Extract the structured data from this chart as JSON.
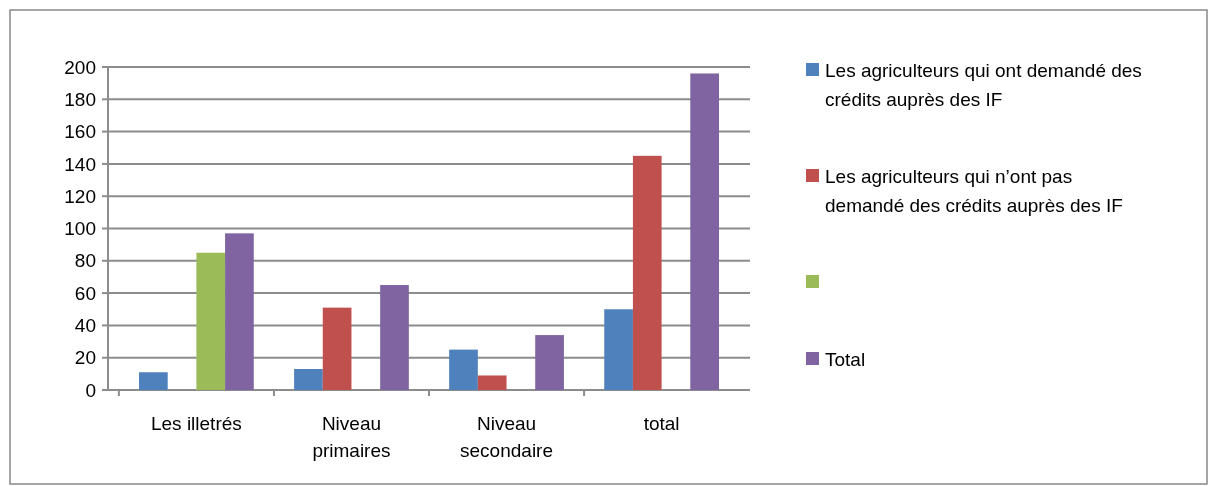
{
  "chart_data": {
    "type": "bar",
    "categories": [
      "Les illetrés",
      "Niveau primaires",
      "Niveau secondaire",
      "total"
    ],
    "series": [
      {
        "name": "Les agriculteurs qui ont demandé des crédits auprès des IF",
        "color": "#4f81bd",
        "values": [
          11,
          13,
          25,
          50
        ]
      },
      {
        "name": "Les agriculteurs qui n’ont pas demandé des crédits auprès des IF",
        "color": "#c0504d",
        "values": [
          null,
          51,
          9,
          145
        ]
      },
      {
        "color": "#9bbb59",
        "values": [
          85,
          null,
          null,
          null
        ]
      },
      {
        "name": "Total",
        "color": "#8064a2",
        "values": [
          97,
          65,
          34,
          196
        ]
      }
    ],
    "ylim": [
      0,
      200
    ],
    "yticks": [
      0,
      20,
      40,
      60,
      80,
      100,
      120,
      140,
      160,
      180,
      200
    ],
    "grid": "y",
    "legend": "right"
  }
}
